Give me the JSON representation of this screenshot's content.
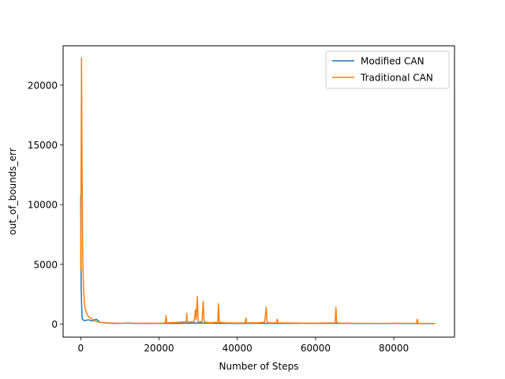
{
  "chart_data": {
    "type": "line",
    "title": "",
    "xlabel": "Number of Steps",
    "ylabel": "out_of_bounds_err",
    "xlim": [
      -4500,
      95500
    ],
    "ylim": [
      -1100,
      23300
    ],
    "xticks": [
      0,
      20000,
      40000,
      60000,
      80000
    ],
    "xtick_labels": [
      "0",
      "20000",
      "40000",
      "60000",
      "80000"
    ],
    "yticks": [
      0,
      5000,
      10000,
      15000,
      20000
    ],
    "ytick_labels": [
      "0",
      "5000",
      "10000",
      "15000",
      "20000"
    ],
    "grid": false,
    "legend_position": "top-right",
    "series": [
      {
        "name": "Modified CAN",
        "color": "#1f77b4",
        "x": [
          0,
          100,
          200,
          300,
          400,
          600,
          800,
          1000,
          1500,
          2000,
          2500,
          3000,
          3500,
          4000,
          4500,
          5000,
          6000,
          7000,
          8000,
          9000,
          10000,
          12000,
          14000,
          16000,
          18000,
          20000,
          25000,
          30000,
          35000,
          40000,
          45000,
          50000,
          55000,
          60000,
          65000,
          70000,
          75000,
          80000,
          85000,
          90000,
          90500
        ],
        "y": [
          10800,
          3000,
          2000,
          800,
          400,
          350,
          300,
          280,
          320,
          350,
          300,
          250,
          350,
          400,
          250,
          150,
          100,
          80,
          60,
          50,
          60,
          80,
          60,
          50,
          60,
          50,
          60,
          80,
          60,
          50,
          60,
          50,
          60,
          50,
          60,
          50,
          40,
          50,
          40,
          30,
          30
        ]
      },
      {
        "name": "Traditional CAN",
        "color": "#ff7f0e",
        "x": [
          0,
          200,
          300,
          500,
          700,
          1000,
          1500,
          2000,
          3000,
          4000,
          6000,
          8000,
          10000,
          15000,
          20000,
          21600,
          21800,
          22000,
          25000,
          27000,
          27100,
          27200,
          29000,
          29300,
          29500,
          29800,
          30000,
          30300,
          31000,
          31300,
          31500,
          31800,
          33000,
          35000,
          35200,
          35400,
          37000,
          40000,
          42000,
          42200,
          42400,
          45000,
          47000,
          47400,
          47600,
          48000,
          50000,
          50200,
          50400,
          55000,
          60000,
          65000,
          65200,
          65400,
          65800,
          70000,
          75000,
          80000,
          85000,
          85800,
          86000,
          86200,
          90000,
          90500
        ],
        "y": [
          4500,
          22300,
          15000,
          6000,
          3000,
          1500,
          900,
          600,
          400,
          200,
          100,
          80,
          60,
          60,
          60,
          100,
          700,
          100,
          150,
          200,
          900,
          150,
          200,
          1200,
          400,
          2300,
          200,
          150,
          200,
          1900,
          300,
          150,
          100,
          150,
          1700,
          150,
          100,
          80,
          100,
          500,
          100,
          100,
          150,
          1400,
          200,
          100,
          100,
          400,
          100,
          80,
          70,
          100,
          1400,
          150,
          80,
          60,
          50,
          50,
          60,
          50,
          400,
          60,
          40,
          40
        ]
      }
    ]
  }
}
